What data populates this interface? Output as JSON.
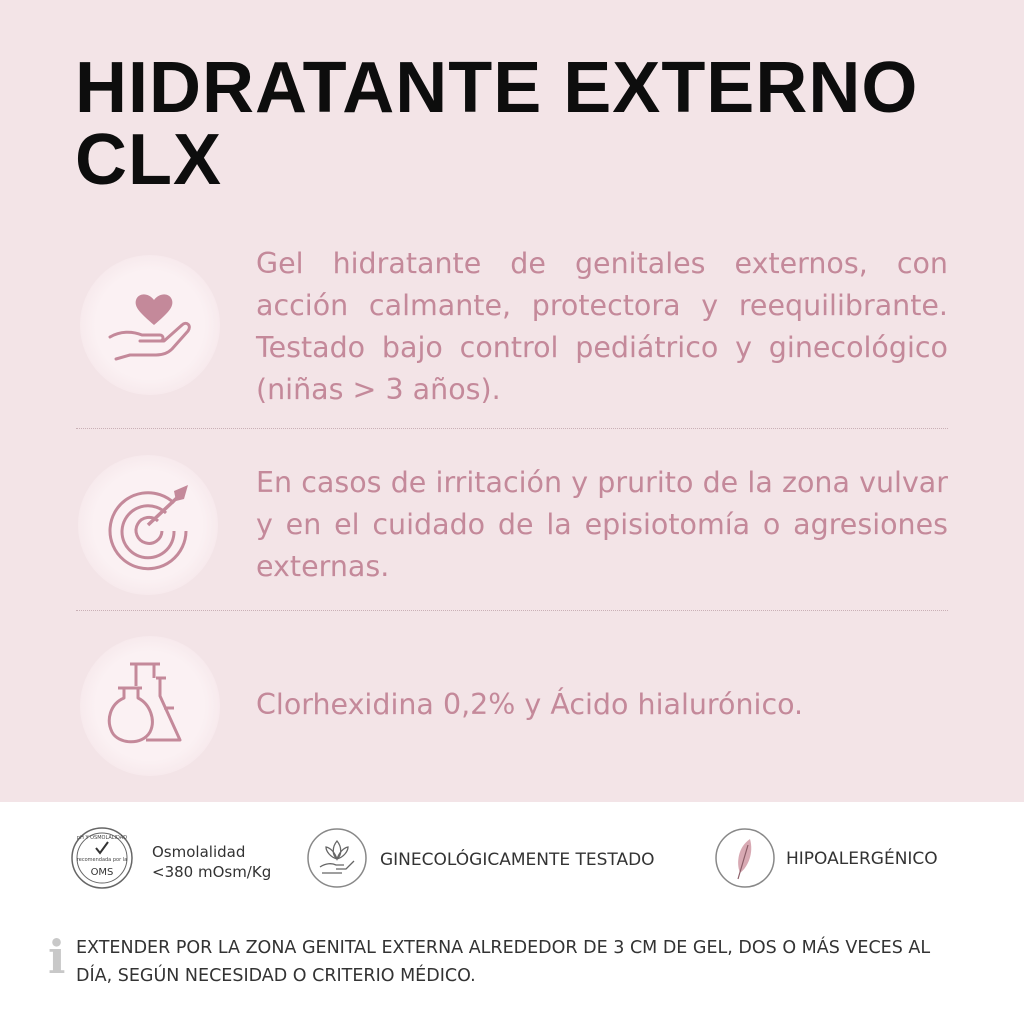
{
  "header": {
    "title": "HIDRATANTE EXTERNO CLX"
  },
  "features": [
    {
      "text": "Gel hidratante de genitales externos, con acción calmante, protectora y reequilibrante. Testado bajo control pediátrico y ginecológico (niñas > 3 años)."
    },
    {
      "text": "En casos de irritación y prurito de la zona vulvar y en el cuidado de la episiotomía o agresiones externas."
    },
    {
      "text": "Clorhexidina 0,2% y Ácido hialurónico."
    }
  ],
  "badges": [
    {
      "seal_top": "pH Y OSMOLALIDAD",
      "seal_middle": "recomendada por la",
      "seal_bottom": "OMS",
      "label": "Osmolalidad",
      "sublabel": "<380 mOsm/Kg"
    },
    {
      "label": "GINECOLÓGICAMENTE TESTADO"
    },
    {
      "label": "HIPOALERGÉNICO"
    }
  ],
  "instructions": {
    "text": "EXTENDER POR LA ZONA GENITAL EXTERNA ALREDEDOR DE 3 CM DE GEL, DOS O MÁS VECES AL DÍA, SEGÚN NECESIDAD O CRITERIO MÉDICO."
  }
}
